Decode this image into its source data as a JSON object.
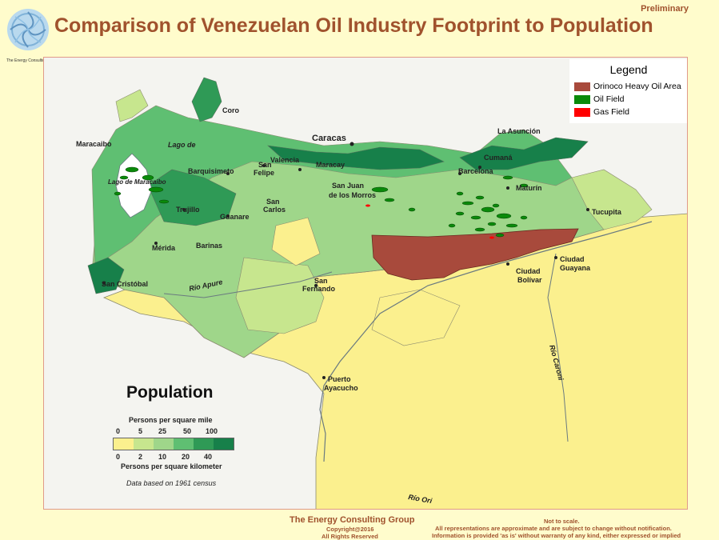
{
  "header": {
    "badge": "Preliminary",
    "title": "Comparison of Venezuelan Oil Industry Footprint to Population",
    "logo_caption": "The Energy Consulting Group"
  },
  "legend": {
    "title": "Legend",
    "items": [
      {
        "label": "Orinoco Heavy Oil Area",
        "color": "#a84a3c"
      },
      {
        "label": "Oil Field",
        "color": "#0a8a0a"
      },
      {
        "label": "Gas Field",
        "color": "#ff0000"
      }
    ]
  },
  "map": {
    "places": {
      "goro": "Coro",
      "lago": "Lago de",
      "maracaibo_city": "Maracaibo",
      "lago_maracaibo": "Lago de Maracaibo",
      "caracas": "Caracas",
      "la_asuncion": "La Asunción",
      "cumana": "Cumaná",
      "barcelona": "Barcelona",
      "maturin": "Maturín",
      "tucupita": "Tucupita",
      "barquisimeto": "Barquisimeto",
      "valencia": "Valencia",
      "maracay": "Maracay",
      "san_felipe_1": "San",
      "san_felipe_2": "Felipe",
      "san_juan_1": "San Juan",
      "san_juan_2": "de los Morros",
      "san_carlos_1": "San",
      "san_carlos_2": "Carlos",
      "trujillo": "Trujillo",
      "guanare": "Guanare",
      "barinas": "Barinas",
      "merida": "Mérida",
      "san_cristobal": "San Cristóbal",
      "rio_apure": "Río Apure",
      "san_fernando_1": "San",
      "san_fernando_2": "Fernando",
      "ciudad_bolivar_1": "Ciudad",
      "ciudad_bolivar_2": "Bolívar",
      "ciudad_guayana_1": "Ciudad",
      "ciudad_guayana_2": "Guayana",
      "rio_caroni": "Río Caroni",
      "puerto_ayacucho_1": "Puerto",
      "puerto_ayacucho_2": "Ayacucho",
      "rio_orinoco": "Río Ori"
    },
    "population_key": {
      "title": "Population",
      "per_mile_label": "Persons per square mile",
      "per_km_label": "Persons per square kilometer",
      "mile_ticks": [
        "0",
        "5",
        "25",
        "50",
        "100"
      ],
      "km_ticks": [
        "0",
        "2",
        "10",
        "20",
        "40"
      ],
      "colors": [
        "#fbf08e",
        "#c7e68e",
        "#9fd68a",
        "#5fbf72",
        "#2f9a56",
        "#17804a"
      ],
      "census_note": "Data based on 1961 census"
    }
  },
  "footer": {
    "company": "The Energy Consulting Group",
    "copyright": "Copyright@2016",
    "rights": "All Rights Reserved",
    "disclaimer_1": "Not to scale.",
    "disclaimer_2": "All representations are approximate and are subject to change without notification.",
    "disclaimer_3": "Information is provided 'as is' without warranty of any kind, either expressed or implied"
  }
}
